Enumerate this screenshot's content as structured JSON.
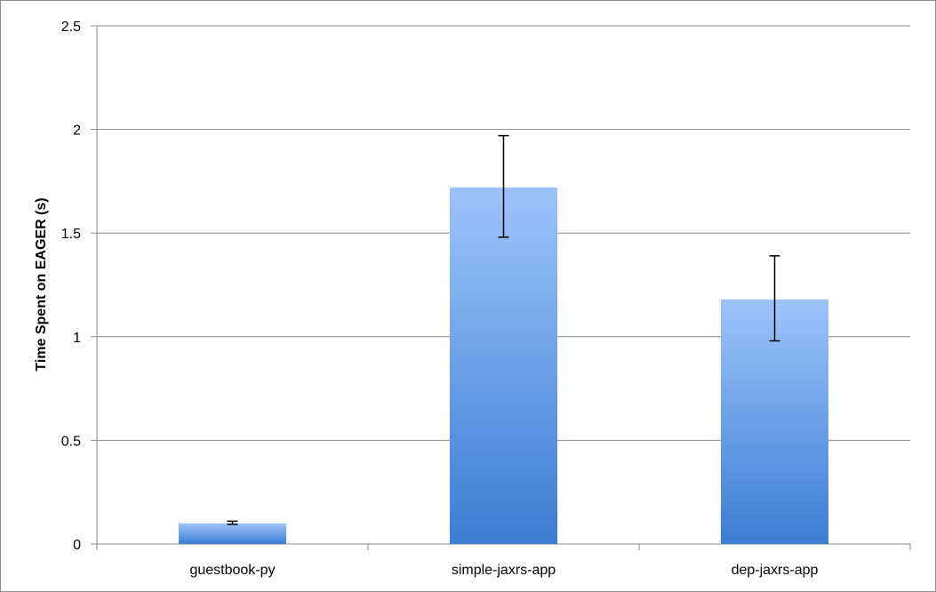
{
  "chart_data": {
    "type": "bar",
    "categories": [
      "guestbook-py",
      "simple-jaxrs-app",
      "dep-jaxrs-app"
    ],
    "values": [
      0.1,
      1.72,
      1.18
    ],
    "error_bars": [
      {
        "low": 0.095,
        "high": 0.11
      },
      {
        "low": 1.48,
        "high": 1.97
      },
      {
        "low": 0.98,
        "high": 1.39
      }
    ],
    "title": "",
    "xlabel": "",
    "ylabel": "Time Spent on EAGER (s)",
    "ylim": [
      0,
      2.5
    ],
    "yticks": [
      0,
      0.5,
      1,
      1.5,
      2,
      2.5
    ],
    "ytick_labels": [
      "0",
      "0.5",
      "1",
      "1.5",
      "2",
      "2.5"
    ],
    "grid": true,
    "legend": "none",
    "colors": {
      "bar_top": "#9ec3fb",
      "bar_bottom": "#3b7dd3",
      "grid": "#8c8c8c",
      "error_bar": "#000000"
    }
  }
}
